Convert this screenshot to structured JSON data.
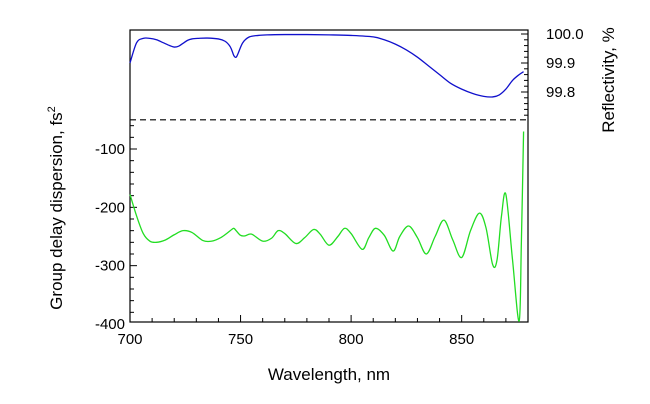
{
  "chart_data": {
    "type": "line",
    "xlabel": "Wavelength, nm",
    "ylabel_left_base": "Group delay dispersion, fs",
    "ylabel_left_sup": "2",
    "ylabel_right": "Reflectivity, %",
    "xlim": [
      700,
      880
    ],
    "ylim_left": [
      -400,
      -50
    ],
    "ylim_right": [
      99.72,
      100.01
    ],
    "x_ticks": [
      "700",
      "750",
      "800",
      "850"
    ],
    "y_left_ticks": [
      "-100",
      "-200",
      "-300",
      "-400"
    ],
    "y_right_ticks": [
      "100.0",
      "99.9",
      "99.8"
    ],
    "reference_line": {
      "style": "dashed",
      "y_left": -50
    },
    "colors": {
      "reflectivity": "#1010cc",
      "gdd": "#22dd22",
      "reference": "#000000"
    },
    "series": [
      {
        "axis": "right",
        "x": [
          700,
          703,
          706,
          709,
          712,
          715,
          718,
          720,
          722,
          724,
          726,
          728,
          731,
          735,
          740,
          743,
          745,
          746,
          747,
          748,
          749,
          751,
          754,
          758,
          762,
          770,
          780,
          790,
          800,
          810,
          815,
          820,
          825,
          830,
          835,
          840,
          845,
          850,
          855,
          860,
          864,
          867,
          870,
          873,
          876,
          878
        ],
        "values": [
          99.9,
          99.97,
          99.985,
          99.985,
          99.98,
          99.97,
          99.96,
          99.955,
          99.958,
          99.968,
          99.978,
          99.983,
          99.985,
          99.986,
          99.983,
          99.975,
          99.96,
          99.945,
          99.925,
          99.92,
          99.935,
          99.97,
          99.99,
          99.995,
          99.997,
          99.998,
          99.998,
          99.997,
          99.995,
          99.99,
          99.98,
          99.965,
          99.945,
          99.92,
          99.89,
          99.86,
          99.83,
          99.81,
          99.795,
          99.785,
          99.783,
          99.79,
          99.81,
          99.84,
          99.86,
          99.87
        ]
      },
      {
        "axis": "left",
        "x": [
          700,
          703,
          706,
          709,
          712,
          716,
          720,
          724,
          728,
          733,
          737,
          741,
          744,
          746,
          747,
          748,
          750,
          752,
          755,
          760,
          764,
          767,
          770,
          775,
          779,
          783,
          786,
          790,
          794,
          797,
          800,
          805,
          808,
          811,
          815,
          819,
          822,
          826,
          830,
          834,
          838,
          842,
          846,
          850,
          854,
          858,
          861,
          864,
          866,
          868,
          870,
          873,
          876,
          877,
          878
        ],
        "values": [
          -178,
          -215,
          -245,
          -258,
          -260,
          -256,
          -247,
          -240,
          -243,
          -257,
          -258,
          -252,
          -244,
          -238,
          -236,
          -240,
          -248,
          -249,
          -246,
          -258,
          -253,
          -240,
          -245,
          -262,
          -252,
          -238,
          -246,
          -265,
          -250,
          -236,
          -245,
          -272,
          -252,
          -236,
          -248,
          -275,
          -250,
          -232,
          -252,
          -280,
          -250,
          -222,
          -256,
          -286,
          -240,
          -210,
          -235,
          -298,
          -290,
          -215,
          -178,
          -290,
          -395,
          -260,
          -70
        ]
      }
    ]
  }
}
